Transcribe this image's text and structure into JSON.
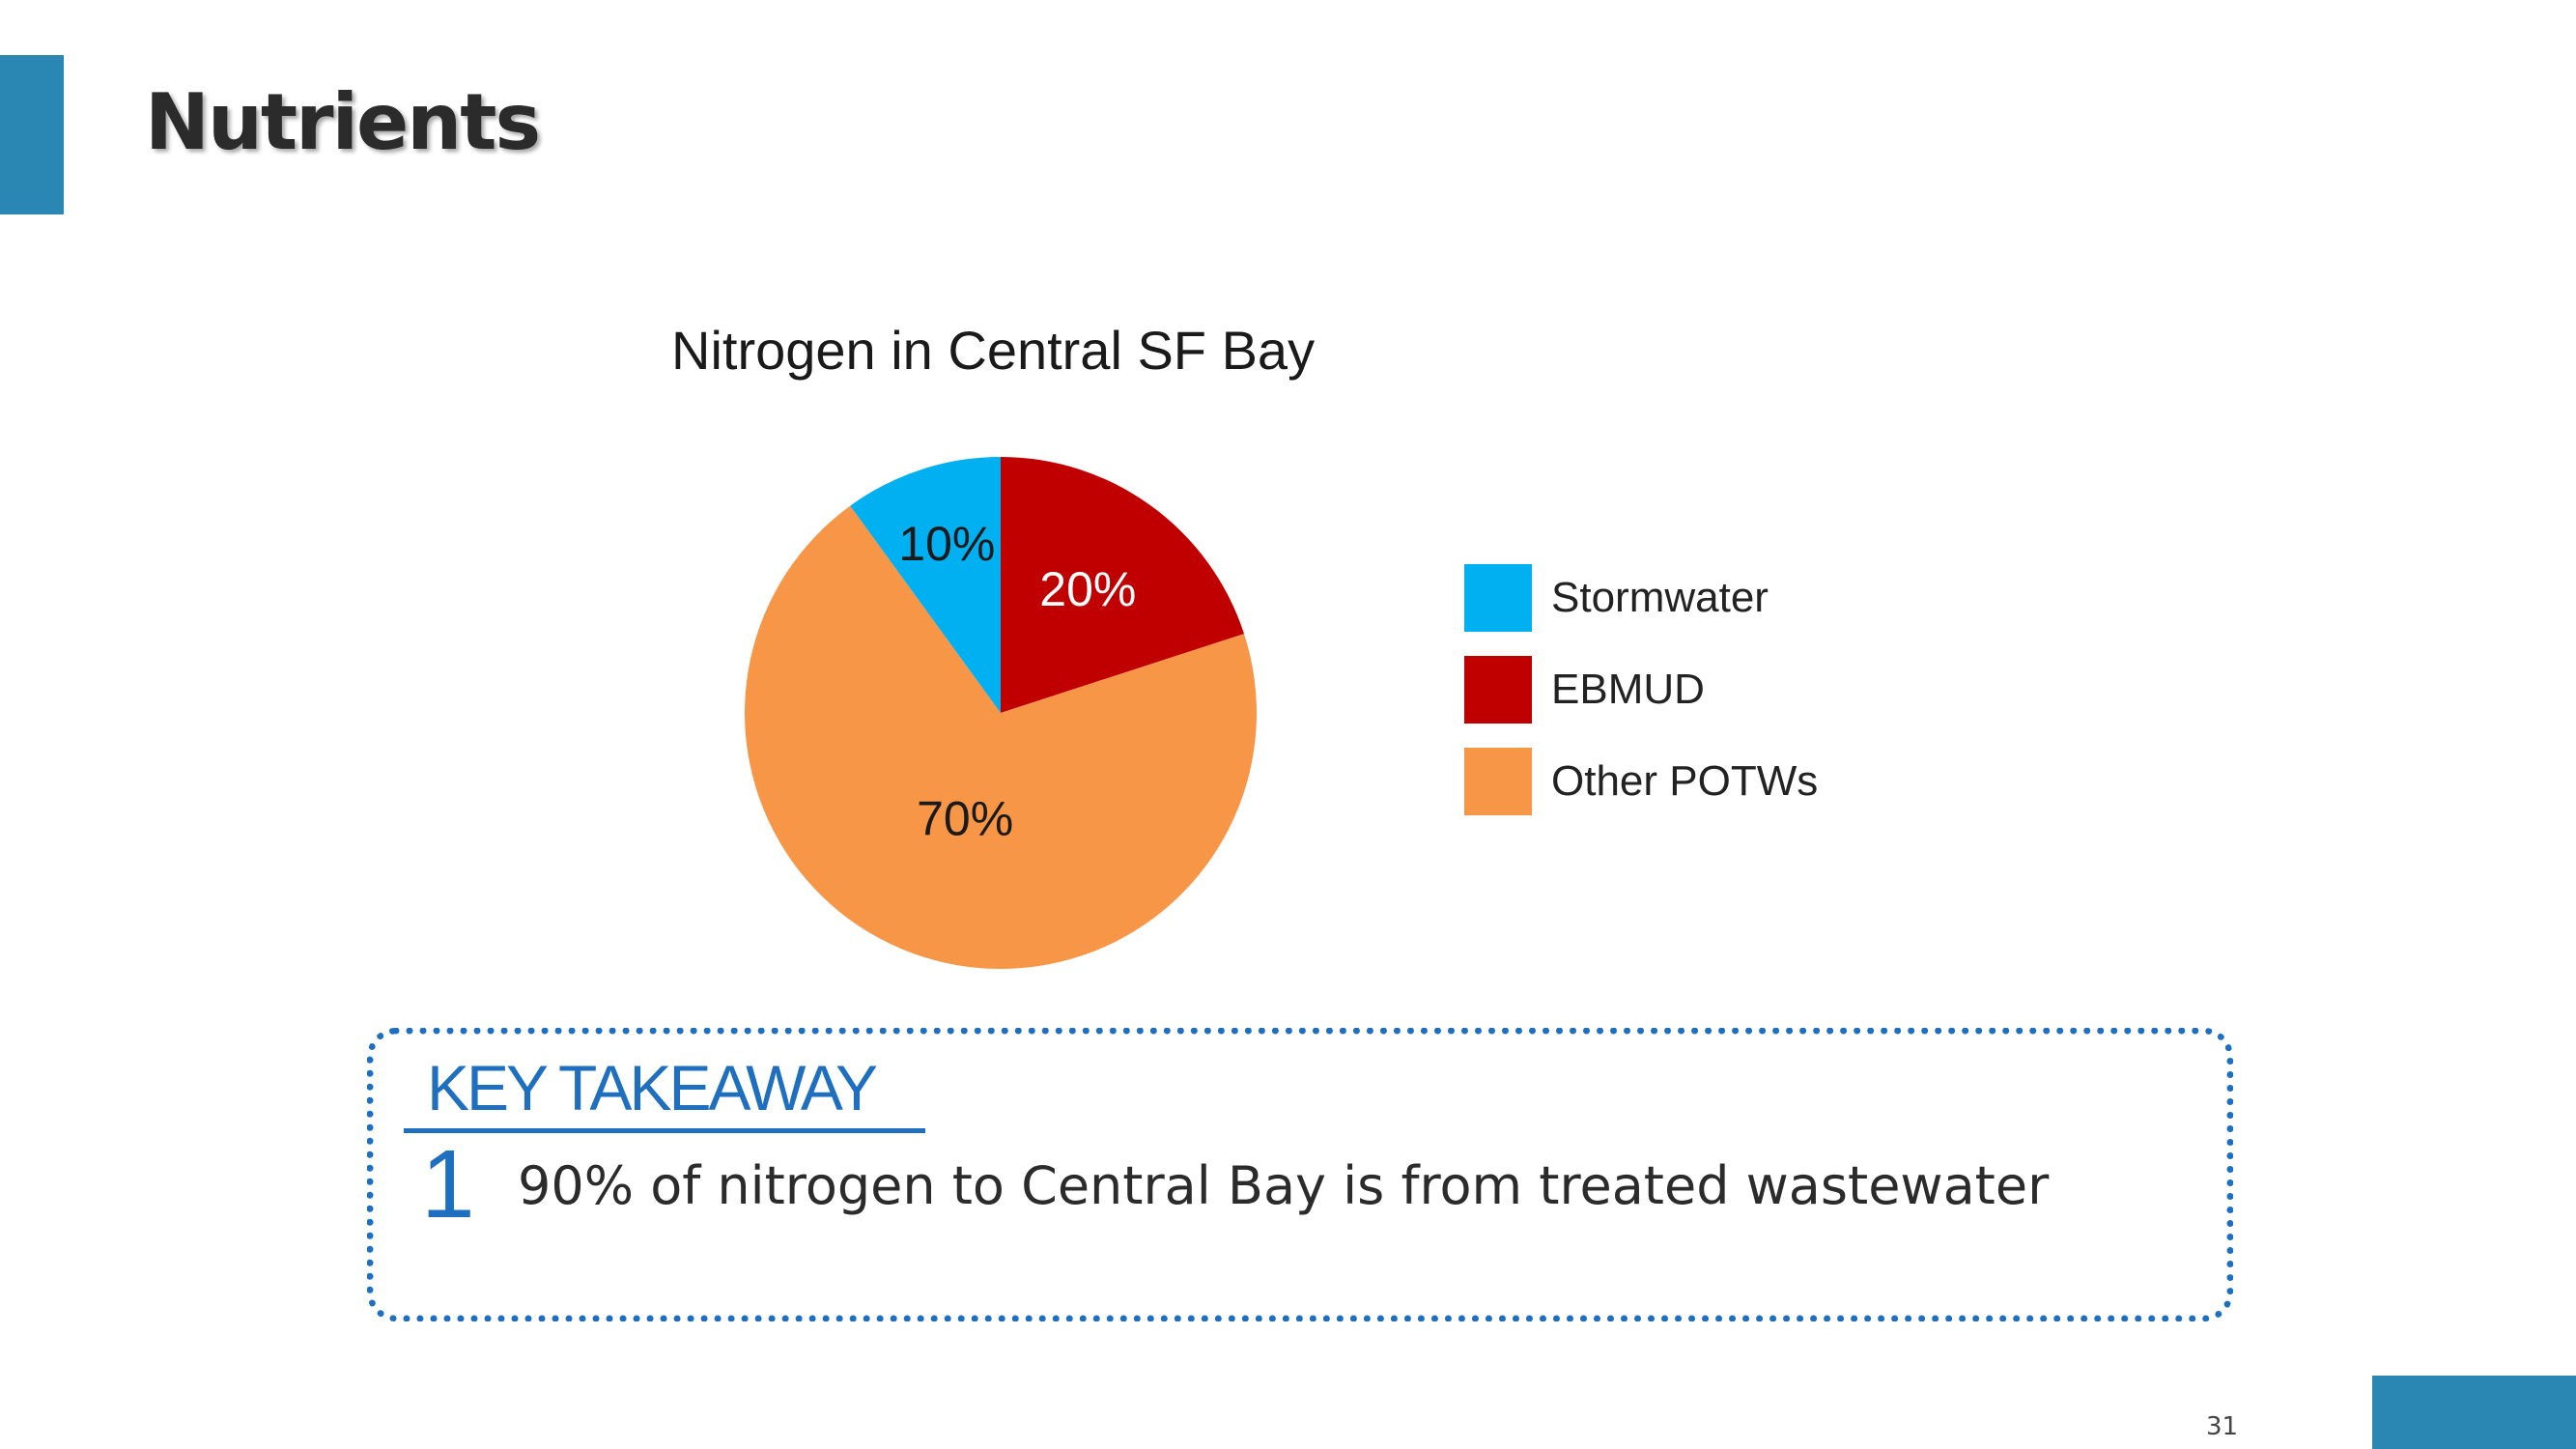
{
  "slide": {
    "title": "Nutrients",
    "page_number": "31"
  },
  "chart_data": {
    "type": "pie",
    "title": "Nitrogen in Central SF Bay",
    "slices": [
      {
        "name": "EBMUD",
        "value": 20,
        "label": "20%",
        "color": "#c00000",
        "label_color": "#ffffff"
      },
      {
        "name": "Other POTWs",
        "value": 70,
        "label": "70%",
        "color": "#f79646",
        "label_color": "#1a1a1a"
      },
      {
        "name": "Stormwater",
        "value": 10,
        "label": "10%",
        "color": "#00b0f0",
        "label_color": "#1a1a1a"
      }
    ],
    "legend": {
      "position": "right",
      "entries": [
        {
          "name": "Stormwater",
          "color": "#00b0f0"
        },
        {
          "name": "EBMUD",
          "color": "#c00000"
        },
        {
          "name": "Other POTWs",
          "color": "#f79646"
        }
      ]
    }
  },
  "takeaway": {
    "heading": "KEY TAKEAWAY",
    "number": "1",
    "text": "90% of nitrogen to Central Bay is from treated wastewater"
  },
  "colors": {
    "accent": "#2a86b3",
    "takeaway_blue": "#1f6fc0"
  }
}
